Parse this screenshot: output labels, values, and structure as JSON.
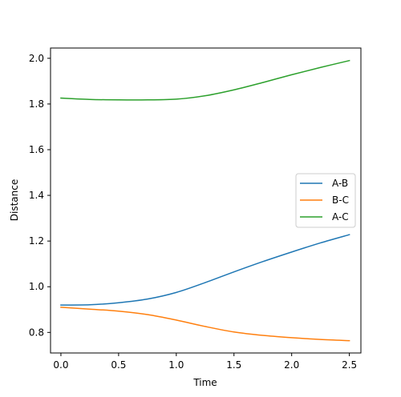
{
  "chart_data": {
    "type": "line",
    "title": "",
    "xlabel": "Time",
    "ylabel": "Distance",
    "xlim": [
      -0.09,
      2.6
    ],
    "ylim": [
      0.71,
      2.045
    ],
    "xticks": [
      0.0,
      0.5,
      1.0,
      1.5,
      2.0,
      2.5
    ],
    "xtick_labels": [
      "0.0",
      "0.5",
      "1.0",
      "1.5",
      "2.0",
      "2.5"
    ],
    "yticks": [
      0.8,
      1.0,
      1.2,
      1.4,
      1.6,
      1.8,
      2.0
    ],
    "ytick_labels": [
      "0.8",
      "1.0",
      "1.2",
      "1.4",
      "1.6",
      "1.8",
      "2.0"
    ],
    "grid": false,
    "legend_position": "center-right",
    "x": [
      0.0,
      0.25,
      0.5,
      0.75,
      1.0,
      1.25,
      1.5,
      1.75,
      2.0,
      2.25,
      2.5
    ],
    "series": [
      {
        "name": "A-B",
        "color": "#1f77b4",
        "values": [
          0.92,
          0.921,
          0.93,
          0.946,
          0.975,
          1.018,
          1.065,
          1.11,
          1.152,
          1.192,
          1.228
        ]
      },
      {
        "name": "B-C",
        "color": "#ff7f0e",
        "values": [
          0.91,
          0.902,
          0.893,
          0.878,
          0.854,
          0.826,
          0.802,
          0.787,
          0.777,
          0.769,
          0.764
        ]
      },
      {
        "name": "A-C",
        "color": "#2ca02c",
        "values": [
          1.826,
          1.82,
          1.818,
          1.818,
          1.821,
          1.836,
          1.862,
          1.894,
          1.928,
          1.96,
          1.99
        ]
      }
    ]
  }
}
